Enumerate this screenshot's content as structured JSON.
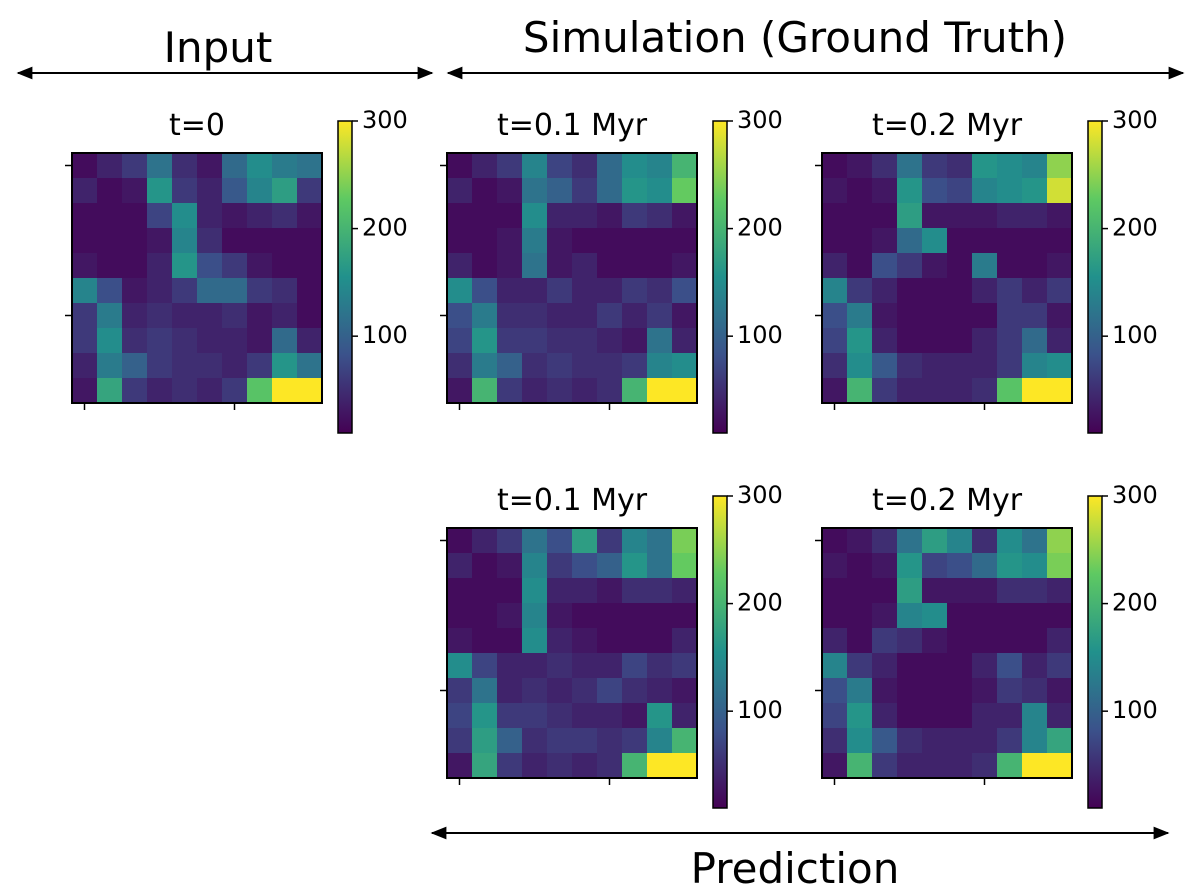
{
  "sections": [
    {
      "label": "Input"
    },
    {
      "label": "Simulation (Ground Truth)"
    },
    {
      "label": "Prediction"
    }
  ],
  "chart_data": [
    {
      "type": "heatmap",
      "title": "t=0",
      "colormap": "viridis",
      "clim": [
        10,
        300
      ],
      "cticks": [
        100,
        200,
        300
      ],
      "xlim": [
        -0.5,
        9.5
      ],
      "ylim": [
        9.5,
        -0.5
      ],
      "xticks": [
        0,
        6
      ],
      "yticks": [
        0,
        6
      ],
      "z": [
        [
          20,
          40,
          60,
          120,
          50,
          30,
          110,
          150,
          130,
          120
        ],
        [
          40,
          20,
          30,
          160,
          60,
          40,
          90,
          140,
          170,
          60
        ],
        [
          20,
          20,
          20,
          70,
          150,
          40,
          30,
          40,
          50,
          30
        ],
        [
          20,
          20,
          20,
          30,
          140,
          50,
          20,
          20,
          20,
          20
        ],
        [
          30,
          20,
          20,
          40,
          160,
          80,
          60,
          30,
          20,
          20
        ],
        [
          140,
          80,
          30,
          40,
          60,
          110,
          110,
          60,
          50,
          20
        ],
        [
          60,
          130,
          40,
          50,
          40,
          40,
          50,
          30,
          40,
          20
        ],
        [
          60,
          150,
          50,
          60,
          50,
          40,
          40,
          30,
          110,
          40
        ],
        [
          40,
          130,
          100,
          60,
          50,
          50,
          40,
          60,
          160,
          120
        ],
        [
          30,
          180,
          60,
          40,
          50,
          40,
          60,
          220,
          300,
          300
        ]
      ]
    },
    {
      "type": "heatmap",
      "title": "t=0.1 Myr",
      "colormap": "viridis",
      "clim": [
        10,
        300
      ],
      "cticks": [
        100,
        200,
        300
      ],
      "xlim": [
        -0.5,
        9.5
      ],
      "ylim": [
        9.5,
        -0.5
      ],
      "xticks": [
        0,
        6
      ],
      "yticks": [
        0,
        6
      ],
      "z": [
        [
          20,
          40,
          60,
          140,
          70,
          50,
          110,
          150,
          140,
          200
        ],
        [
          40,
          20,
          30,
          120,
          100,
          60,
          110,
          160,
          150,
          230
        ],
        [
          20,
          20,
          20,
          150,
          40,
          40,
          30,
          60,
          50,
          30
        ],
        [
          20,
          20,
          30,
          130,
          30,
          20,
          20,
          20,
          20,
          20
        ],
        [
          40,
          20,
          30,
          120,
          30,
          40,
          20,
          20,
          20,
          30
        ],
        [
          150,
          80,
          40,
          40,
          60,
          40,
          40,
          60,
          50,
          80
        ],
        [
          80,
          130,
          50,
          50,
          40,
          40,
          60,
          40,
          60,
          30
        ],
        [
          70,
          160,
          60,
          60,
          50,
          50,
          40,
          30,
          120,
          40
        ],
        [
          50,
          130,
          100,
          50,
          60,
          50,
          50,
          60,
          140,
          150
        ],
        [
          30,
          200,
          60,
          40,
          50,
          40,
          50,
          200,
          300,
          300
        ]
      ]
    },
    {
      "type": "heatmap",
      "title": "t=0.2 Myr",
      "colormap": "viridis",
      "clim": [
        10,
        300
      ],
      "cticks": [
        100,
        200,
        300
      ],
      "xlim": [
        -0.5,
        9.5
      ],
      "ylim": [
        9.5,
        -0.5
      ],
      "xticks": [
        0,
        6
      ],
      "yticks": [
        0,
        6
      ],
      "z": [
        [
          20,
          30,
          50,
          120,
          60,
          50,
          160,
          150,
          140,
          250
        ],
        [
          30,
          20,
          30,
          160,
          80,
          70,
          140,
          150,
          160,
          280
        ],
        [
          20,
          20,
          20,
          170,
          30,
          30,
          30,
          40,
          40,
          30
        ],
        [
          20,
          20,
          30,
          110,
          150,
          20,
          20,
          20,
          20,
          20
        ],
        [
          40,
          20,
          80,
          60,
          30,
          20,
          130,
          20,
          20,
          30
        ],
        [
          140,
          60,
          40,
          20,
          20,
          20,
          40,
          60,
          40,
          60
        ],
        [
          80,
          130,
          30,
          20,
          20,
          20,
          20,
          60,
          60,
          30
        ],
        [
          70,
          160,
          40,
          20,
          20,
          20,
          40,
          60,
          110,
          40
        ],
        [
          50,
          150,
          90,
          50,
          40,
          40,
          40,
          60,
          140,
          150
        ],
        [
          30,
          200,
          60,
          40,
          40,
          40,
          50,
          220,
          300,
          300
        ]
      ]
    },
    {
      "type": "heatmap",
      "title": "t=0.1 Myr",
      "colormap": "viridis",
      "clim": [
        10,
        300
      ],
      "cticks": [
        100,
        200,
        300
      ],
      "xlim": [
        -0.5,
        9.5
      ],
      "ylim": [
        9.5,
        -0.5
      ],
      "xticks": [
        0,
        6
      ],
      "yticks": [
        0,
        6
      ],
      "z": [
        [
          20,
          40,
          60,
          120,
          80,
          170,
          60,
          140,
          120,
          240
        ],
        [
          40,
          20,
          30,
          140,
          60,
          80,
          100,
          160,
          120,
          230
        ],
        [
          20,
          20,
          20,
          150,
          40,
          40,
          30,
          50,
          50,
          40
        ],
        [
          20,
          20,
          30,
          140,
          30,
          20,
          20,
          20,
          20,
          20
        ],
        [
          30,
          20,
          20,
          150,
          40,
          30,
          20,
          20,
          20,
          40
        ],
        [
          150,
          70,
          40,
          40,
          50,
          40,
          40,
          70,
          50,
          60
        ],
        [
          60,
          120,
          40,
          50,
          40,
          50,
          70,
          50,
          40,
          30
        ],
        [
          70,
          160,
          60,
          60,
          50,
          40,
          40,
          30,
          160,
          40
        ],
        [
          60,
          170,
          100,
          50,
          60,
          60,
          50,
          60,
          140,
          200
        ],
        [
          30,
          180,
          60,
          40,
          50,
          40,
          50,
          200,
          300,
          300
        ]
      ]
    },
    {
      "type": "heatmap",
      "title": "t=0.2 Myr",
      "colormap": "viridis",
      "clim": [
        10,
        300
      ],
      "cticks": [
        100,
        200,
        300
      ],
      "xlim": [
        -0.5,
        9.5
      ],
      "ylim": [
        9.5,
        -0.5
      ],
      "xticks": [
        0,
        6
      ],
      "yticks": [
        0,
        6
      ],
      "z": [
        [
          20,
          30,
          50,
          120,
          170,
          140,
          50,
          150,
          120,
          250
        ],
        [
          30,
          20,
          30,
          160,
          70,
          80,
          110,
          160,
          150,
          240
        ],
        [
          20,
          20,
          20,
          170,
          30,
          30,
          30,
          50,
          50,
          40
        ],
        [
          20,
          20,
          30,
          140,
          150,
          20,
          20,
          20,
          20,
          20
        ],
        [
          40,
          20,
          60,
          50,
          30,
          20,
          20,
          20,
          20,
          40
        ],
        [
          140,
          60,
          40,
          20,
          20,
          20,
          40,
          80,
          40,
          60
        ],
        [
          80,
          130,
          30,
          20,
          20,
          20,
          30,
          60,
          50,
          30
        ],
        [
          70,
          160,
          40,
          20,
          20,
          20,
          40,
          40,
          140,
          40
        ],
        [
          50,
          150,
          90,
          50,
          40,
          40,
          40,
          60,
          140,
          180
        ],
        [
          30,
          200,
          60,
          40,
          40,
          40,
          50,
          200,
          300,
          300
        ]
      ]
    }
  ]
}
